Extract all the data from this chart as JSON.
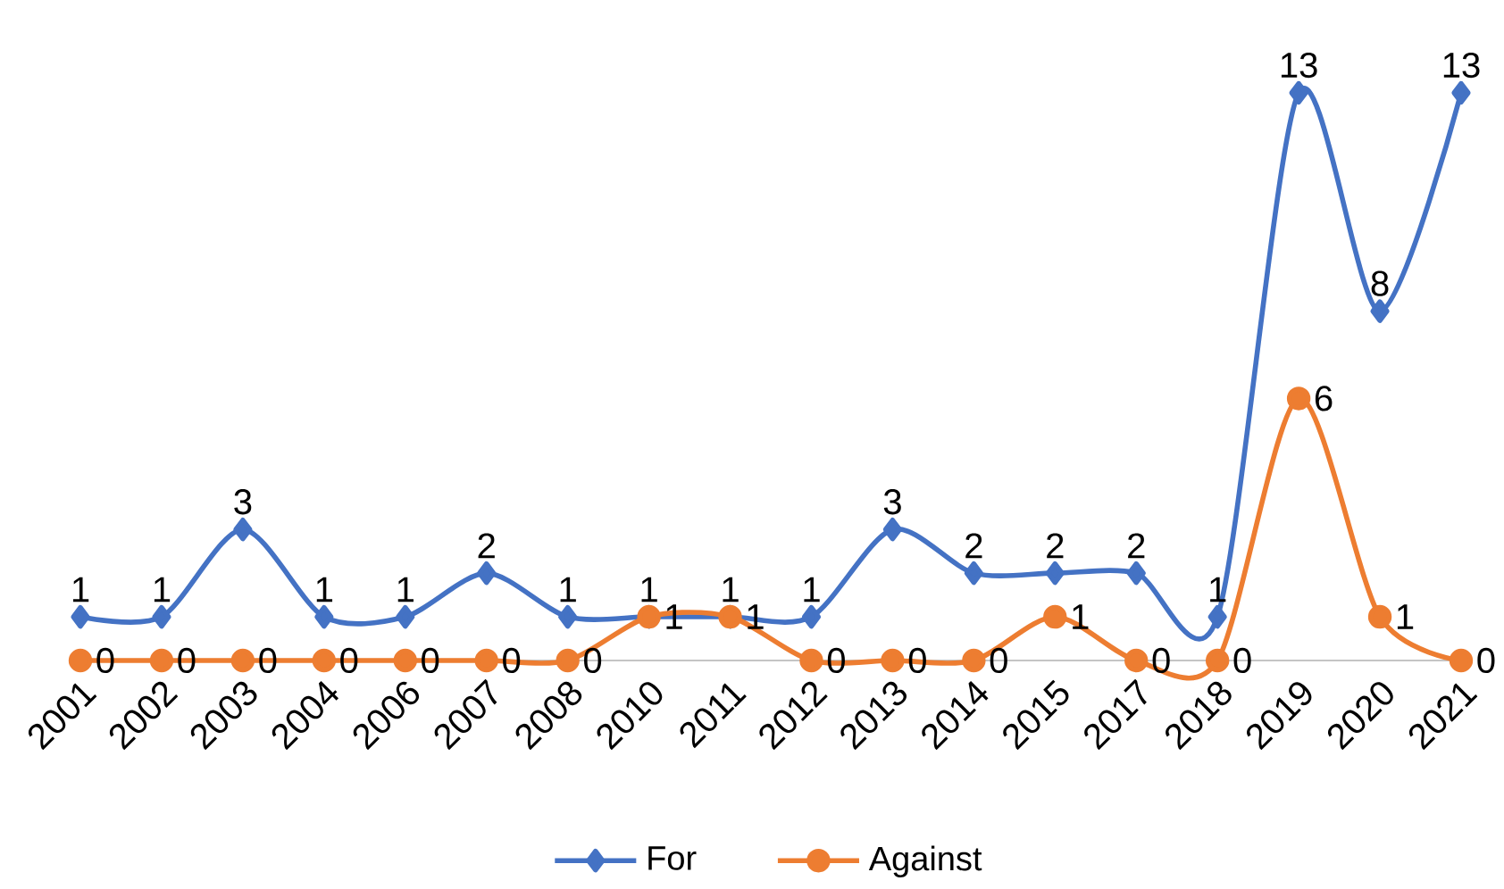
{
  "chart_data": {
    "type": "line",
    "categories": [
      "2001",
      "2002",
      "2003",
      "2004",
      "2006",
      "2007",
      "2008",
      "2010",
      "2011",
      "2012",
      "2013",
      "2014",
      "2015",
      "2017",
      "2018",
      "2019",
      "2020",
      "2021"
    ],
    "series": [
      {
        "name": "For",
        "color": "#4472c4",
        "marker": "diamond",
        "values": [
          1,
          1,
          3,
          1,
          1,
          2,
          1,
          1,
          1,
          1,
          3,
          2,
          2,
          2,
          1,
          13,
          8,
          13
        ]
      },
      {
        "name": "Against",
        "color": "#ed7d31",
        "marker": "circle",
        "values": [
          0,
          0,
          0,
          0,
          0,
          0,
          0,
          1,
          1,
          0,
          0,
          0,
          1,
          0,
          0,
          6,
          1,
          0
        ]
      }
    ],
    "data_labels": true,
    "legend": "bottom",
    "grid": false
  }
}
